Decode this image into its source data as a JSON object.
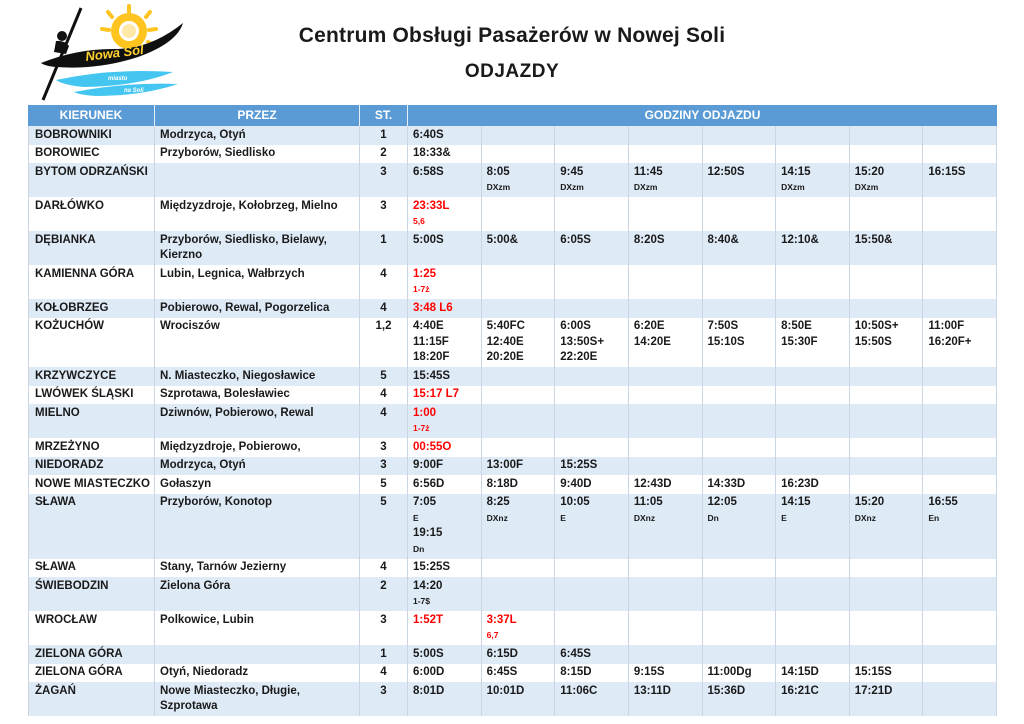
{
  "page": {
    "title": "Centrum Obsługi Pasażerów w Nowej Soli",
    "subtitle": "ODJAZDY"
  },
  "logo": {
    "name": "Nowa Sól",
    "tagline_line1": "miasto",
    "tagline_line2": "na Soli"
  },
  "colors": {
    "header_bg": "#5B9BD5",
    "band_bg": "#DEEAF6",
    "red": "#FF0000",
    "sun_yellow": "#FFC41F",
    "water_blue": "#45C6F0",
    "boat_black": "#101010"
  },
  "table": {
    "headers": {
      "kierunek": "KIERUNEK",
      "przez": "PRZEZ",
      "st": "ST.",
      "godziny": "GODZINY ODJAZDU"
    },
    "rows": [
      {
        "kierunek": "BOBROWNIKI",
        "przez": "Modrzyca, Otyń",
        "st": "1",
        "red": false,
        "cells": [
          [
            "6:40S"
          ]
        ]
      },
      {
        "kierunek": "BOROWIEC",
        "przez": "Przyborów, Siedlisko",
        "st": "2",
        "red": false,
        "cells": [
          [
            "18:33&"
          ]
        ]
      },
      {
        "kierunek": "BYTOM ODRZAŃSKI",
        "przez": "",
        "st": "3",
        "red": false,
        "cells": [
          [
            "6:58S"
          ],
          [
            "8:05 |DXzm"
          ],
          [
            "9:45 |DXzm"
          ],
          [
            "11:45 |DXzm"
          ],
          [
            "12:50S"
          ],
          [
            "14:15 |DXzm"
          ],
          [
            "15:20 |DXzm"
          ],
          [
            "16:15S"
          ]
        ]
      },
      {
        "kierunek": "DARŁÓWKO",
        "przez": "Międzyzdroje, Kołobrzeg, Mielno",
        "st": "3",
        "red": true,
        "cells": [
          [
            "23:33L |5,6"
          ]
        ]
      },
      {
        "kierunek": "DĘBIANKA",
        "przez": "Przyborów, Siedlisko, Bielawy, Kierzno",
        "st": "1",
        "red": false,
        "cells": [
          [
            "5:00S"
          ],
          [
            "5:00&"
          ],
          [
            "6:05S"
          ],
          [
            "8:20S"
          ],
          [
            "8:40&"
          ],
          [
            "12:10&"
          ],
          [
            "15:50&"
          ]
        ]
      },
      {
        "kierunek": "KAMIENNA GÓRA",
        "przez": "Lubin, Legnica, Wałbrzych",
        "st": "4",
        "red": true,
        "cells": [
          [
            "1:25 |1-7ż"
          ]
        ]
      },
      {
        "kierunek": "KOŁOBRZEG",
        "przez": "Pobierowo, Rewal, Pogorzelica",
        "st": "4",
        "red": true,
        "cells": [
          [
            "3:48 L6"
          ]
        ]
      },
      {
        "kierunek": "KOŻUCHÓW",
        "przez": "Wrociszów",
        "st": "1,2",
        "red": false,
        "cells": [
          [
            "4:40E",
            "11:15F",
            "18:20F"
          ],
          [
            "5:40FC",
            "12:40E",
            "20:20E"
          ],
          [
            "6:00S",
            "13:50S+",
            "22:20E"
          ],
          [
            "6:20E",
            "14:20E"
          ],
          [
            "7:50S",
            "15:10S"
          ],
          [
            "8:50E",
            "15:30F"
          ],
          [
            "10:50S+",
            "15:50S"
          ],
          [
            "11:00F",
            "16:20F+"
          ]
        ]
      },
      {
        "kierunek": "KRZYWCZYCE",
        "przez": "N. Miasteczko, Niegosławice",
        "st": "5",
        "red": false,
        "cells": [
          [
            "15:45S"
          ]
        ]
      },
      {
        "kierunek": "LWÓWEK ŚLĄSKI",
        "przez": "Szprotawa, Bolesławiec",
        "st": "4",
        "red": true,
        "cells": [
          [
            "15:17 L7"
          ]
        ]
      },
      {
        "kierunek": "MIELNO",
        "przez": "Dziwnów, Pobierowo, Rewal",
        "st": "4",
        "red": true,
        "cells": [
          [
            "1:00 |1-7ż"
          ]
        ]
      },
      {
        "kierunek": "MRZEŻYNO",
        "przez": "Międzyzdroje, Pobierowo,",
        "st": "3",
        "red": true,
        "cells": [
          [
            "00:55O"
          ]
        ]
      },
      {
        "kierunek": "NIEDORADZ",
        "przez": "Modrzyca, Otyń",
        "st": "3",
        "red": false,
        "cells": [
          [
            "9:00F"
          ],
          [
            "13:00F"
          ],
          [
            "15:25S"
          ]
        ]
      },
      {
        "kierunek": "NOWE MIASTECZKO",
        "przez": "Gołaszyn",
        "st": "5",
        "red": false,
        "cells": [
          [
            "6:56D"
          ],
          [
            "8:18D"
          ],
          [
            "9:40D"
          ],
          [
            "12:43D"
          ],
          [
            "14:33D"
          ],
          [
            "16:23D"
          ]
        ]
      },
      {
        "kierunek": "SŁAWA",
        "przez": "Przyborów, Konotop",
        "st": "5",
        "red": false,
        "cells": [
          [
            "7:05|E",
            "19:15|Dn"
          ],
          [
            "8:25|DXnz"
          ],
          [
            "10:05|E"
          ],
          [
            "11:05|DXnz"
          ],
          [
            "12:05|Dn"
          ],
          [
            "14:15|E"
          ],
          [
            "15:20|DXnz"
          ],
          [
            "16:55|En"
          ]
        ]
      },
      {
        "kierunek": "SŁAWA",
        "przez": "Stany, Tarnów Jezierny",
        "st": "4",
        "red": false,
        "cells": [
          [
            "15:25S"
          ]
        ]
      },
      {
        "kierunek": "ŚWIEBODZIN",
        "przez": "Zielona Góra",
        "st": "2",
        "red": false,
        "cells": [
          [
            "14:20 |1-7$"
          ]
        ]
      },
      {
        "kierunek": "WROCŁAW",
        "przez": "Polkowice, Lubin",
        "st": "3",
        "red": true,
        "cells": [
          [
            "1:52T"
          ],
          [
            "3:37L |6,7"
          ]
        ]
      },
      {
        "kierunek": "ZIELONA GÓRA",
        "przez": "",
        "st": "1",
        "red": false,
        "cells": [
          [
            "5:00S"
          ],
          [
            "6:15D"
          ],
          [
            "6:45S"
          ]
        ]
      },
      {
        "kierunek": "ZIELONA GÓRA",
        "przez": "Otyń, Niedoradz",
        "st": "4",
        "red": false,
        "cells": [
          [
            "6:00D"
          ],
          [
            "6:45S"
          ],
          [
            "8:15D"
          ],
          [
            "9:15S"
          ],
          [
            "11:00Dg"
          ],
          [
            "14:15D"
          ],
          [
            "15:15S"
          ]
        ]
      },
      {
        "kierunek": "ŻAGAŃ",
        "przez": "Nowe Miasteczko, Długie, Szprotawa",
        "st": "3",
        "red": false,
        "cells": [
          [
            "8:01D"
          ],
          [
            "10:01D"
          ],
          [
            "11:06C"
          ],
          [
            "13:11D"
          ],
          [
            "15:36D"
          ],
          [
            "16:21C"
          ],
          [
            "17:21D"
          ]
        ]
      }
    ]
  }
}
